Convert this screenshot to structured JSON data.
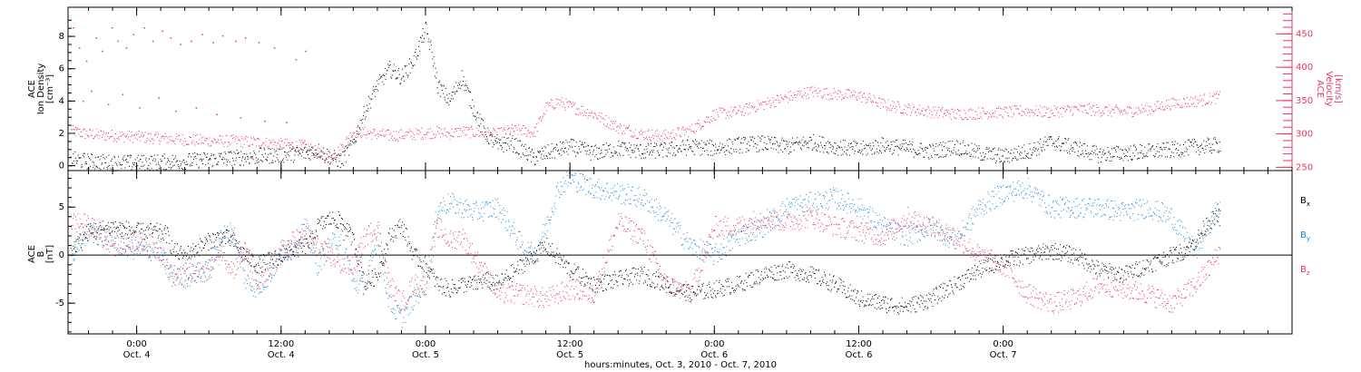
{
  "chart_data": [
    {
      "type": "scatter",
      "panel": "ion-density-velocity",
      "ylabel": [
        "ACE",
        "Ion Density",
        "[cm⁻³]"
      ],
      "y2label": [
        "ACE",
        "Velocity",
        "[km/s]"
      ],
      "ylim": [
        -0.3,
        9.8
      ],
      "yticks": [
        0,
        2,
        4,
        6,
        8
      ],
      "y2lim": [
        245,
        490
      ],
      "y2ticks": [
        250,
        300,
        350,
        400,
        450
      ],
      "colors": {
        "density": "#000000",
        "velocity": "#e8355f"
      },
      "series": [
        {
          "key": "density",
          "x": [
            -5.5,
            -4,
            -2,
            0,
            2,
            4,
            6,
            8,
            10,
            12,
            14,
            15,
            16,
            17,
            18,
            19,
            20,
            21,
            22,
            23,
            23.5,
            24,
            24.5,
            25,
            26,
            27,
            28,
            29,
            30,
            31,
            32,
            33,
            34,
            35,
            36,
            38,
            40,
            42,
            44,
            46,
            48,
            50,
            52,
            54,
            56,
            58,
            60,
            62,
            64,
            66,
            68,
            70,
            72,
            74,
            76,
            78,
            80,
            82,
            84,
            86,
            88,
            90
          ],
          "values": [
            0.4,
            0.3,
            0.2,
            0.2,
            0.25,
            0.3,
            0.4,
            0.5,
            0.6,
            0.7,
            0.8,
            1.0,
            0.6,
            0.3,
            1.5,
            3.5,
            5,
            6,
            5.5,
            6.5,
            7.5,
            8.5,
            7,
            5,
            4,
            5.5,
            3.5,
            2,
            1.2,
            1.5,
            1.0,
            0.5,
            0.8,
            1.0,
            1.2,
            0.8,
            1.1,
            0.9,
            1.0,
            1.2,
            1.1,
            1.3,
            1.4,
            1.2,
            1.5,
            1.2,
            1.0,
            1.3,
            1.1,
            0.9,
            1.2,
            0.8,
            0.6,
            0.9,
            1.5,
            1.1,
            0.7,
            0.8,
            0.9,
            1.0,
            1.2,
            1.3
          ]
        },
        {
          "key": "velocity",
          "x": [
            -5.5,
            -4,
            -2,
            0,
            2,
            4,
            6,
            8,
            10,
            12,
            14,
            15,
            16,
            17,
            18,
            19,
            20,
            21,
            22,
            23,
            24,
            25,
            26,
            27,
            28,
            29,
            30,
            31,
            32,
            33,
            34,
            35,
            36,
            37,
            38,
            40,
            42,
            44,
            46,
            48,
            50,
            52,
            54,
            56,
            58,
            60,
            62,
            64,
            66,
            68,
            70,
            72,
            74,
            76,
            78,
            80,
            82,
            84,
            86,
            88,
            90
          ],
          "values": [
            305,
            300,
            298,
            296,
            294,
            292,
            290,
            290,
            288,
            285,
            282,
            272,
            262,
            280,
            304,
            302,
            300,
            298,
            299,
            300,
            302,
            303,
            301,
            304,
            303,
            300,
            300,
            306,
            306,
            302,
            340,
            349,
            342,
            336,
            330,
            310,
            300,
            298,
            306,
            330,
            334,
            345,
            355,
            364,
            360,
            358,
            345,
            338,
            334,
            330,
            332,
            333,
            335,
            333,
            338,
            336,
            334,
            338,
            346,
            350,
            356
          ]
        }
      ],
      "sparse_velocity_scatter": {
        "x": [
          -5.3,
          -4.8,
          -4.2,
          -3.4,
          -2.9,
          -2.1,
          -1.6,
          -0.9,
          -0.3,
          0.6,
          1.3,
          2.1,
          2.8,
          3.6,
          4.5,
          5.4,
          6.3,
          7.1,
          8.2,
          9.0,
          10.1,
          11.4,
          13.2,
          14.0,
          -4.5,
          -3.8,
          -2.4,
          -1.2,
          0.2,
          1.8,
          3.2,
          4.9,
          6.6,
          8.6,
          10.6,
          12.4
        ],
        "values": [
          460,
          430,
          410,
          445,
          425,
          460,
          440,
          430,
          450,
          460,
          440,
          455,
          445,
          435,
          440,
          450,
          438,
          448,
          440,
          445,
          438,
          430,
          412,
          425,
          350,
          365,
          345,
          360,
          340,
          355,
          335,
          340,
          330,
          325,
          320,
          318
        ]
      }
    },
    {
      "type": "scatter",
      "panel": "magnetic-field",
      "ylabel": [
        "ACE",
        "B",
        "[nT]"
      ],
      "ylim": [
        -8.2,
        8.8
      ],
      "yticks": [
        -5,
        0,
        5
      ],
      "zero_line": true,
      "colors": {
        "Bx": "#000000",
        "By": "#1a86e0",
        "Bz": "#e8355f"
      },
      "series": [
        {
          "key": "Bx",
          "name": "B",
          "x": [
            -5.5,
            -4,
            -2,
            0,
            1.5,
            2.5,
            3,
            4,
            6,
            7,
            8,
            9,
            10,
            11,
            12,
            13,
            14,
            14.5,
            15,
            16,
            17,
            18,
            19,
            20,
            21,
            22,
            23,
            24,
            25,
            26,
            27,
            28,
            29,
            30,
            32,
            34,
            36,
            38,
            40,
            42,
            44,
            46,
            48,
            50,
            52,
            54,
            56,
            58,
            60,
            62,
            64,
            66,
            68,
            70,
            72,
            74,
            76,
            78,
            80,
            82,
            84,
            86,
            87,
            88,
            89,
            90
          ],
          "values": [
            0.5,
            2.5,
            3,
            2.5,
            2.5,
            2.2,
            0.5,
            0,
            1.5,
            2,
            1.5,
            0,
            -1,
            -0.5,
            0,
            0.5,
            1,
            1.5,
            3,
            3.8,
            3.6,
            1.5,
            -3,
            -2,
            2,
            3.2,
            0,
            -1,
            -3,
            -3.5,
            -3,
            -3,
            -2.5,
            -3,
            -1,
            1,
            -1.5,
            -3,
            -2.5,
            -2,
            -3,
            -4,
            -3.5,
            -3,
            -2,
            -1.5,
            -2,
            -3,
            -4.5,
            -5,
            -5.3,
            -4.5,
            -3,
            -1.5,
            -0.5,
            0,
            0.5,
            0,
            -1.5,
            -2,
            -1,
            0,
            0.5,
            1.5,
            3.5,
            4
          ]
        },
        {
          "key": "By",
          "name": "B",
          "x": [
            -5.5,
            -4,
            -2,
            0,
            2,
            2.5,
            3,
            4,
            6,
            7,
            8,
            9,
            10,
            11,
            12,
            13,
            14,
            15,
            16,
            17,
            18,
            19,
            20,
            21,
            22,
            23,
            24,
            25,
            26,
            28,
            30,
            32,
            33,
            34,
            35,
            36,
            38,
            40,
            42,
            44,
            46,
            48,
            50,
            52,
            54,
            56,
            58,
            60,
            62,
            64,
            66,
            68,
            70,
            72,
            74,
            76,
            78,
            80,
            82,
            84,
            86,
            87,
            88,
            89,
            90
          ],
          "values": [
            -0.5,
            2.5,
            1.5,
            0.5,
            0.5,
            -1.5,
            -2,
            -2.3,
            -1.5,
            2,
            2.5,
            -2.5,
            -3.5,
            -2,
            0,
            1,
            3,
            -1,
            1,
            2,
            -3,
            -3,
            2,
            -5,
            -6.5,
            -4.5,
            -3,
            5,
            5.5,
            4.5,
            5,
            1,
            0,
            3,
            7,
            8,
            7,
            6.5,
            6,
            4,
            1,
            0,
            2,
            3,
            5,
            5.5,
            6,
            5,
            3,
            2,
            3,
            1.5,
            5,
            6.5,
            7,
            5,
            5,
            5,
            4.5,
            5,
            4,
            2,
            0.5,
            3,
            5.3
          ]
        },
        {
          "key": "Bz",
          "name": "B",
          "x": [
            -5.5,
            -4,
            -3,
            -2,
            0,
            2,
            2.5,
            3,
            4,
            6,
            7,
            8,
            9,
            10,
            11,
            12,
            13,
            14,
            15,
            16,
            17,
            18,
            19,
            20,
            21,
            22,
            23,
            24,
            25,
            26,
            27,
            28,
            29,
            30,
            32,
            34,
            36,
            38,
            40,
            42,
            44,
            46,
            48,
            50,
            52,
            54,
            56,
            58,
            60,
            62,
            64,
            66,
            68,
            70,
            72,
            74,
            76,
            78,
            80,
            82,
            84,
            86,
            87,
            88,
            89,
            90
          ],
          "values": [
            3.5,
            3.2,
            2,
            1,
            1.5,
            0.5,
            -1,
            -2.5,
            -2,
            -1.5,
            0.5,
            -1.5,
            0.5,
            -3,
            -2,
            0.5,
            1.5,
            2,
            1,
            0,
            -1,
            -1,
            2,
            3,
            -3,
            -5,
            -3,
            -3,
            3,
            1.5,
            2,
            0,
            -2,
            -4,
            -4,
            -4.5,
            -3.5,
            -4,
            3.5,
            2,
            -3,
            -4,
            3,
            3,
            4,
            3.5,
            4,
            3,
            2.5,
            2,
            4,
            3,
            2,
            0,
            -1,
            -4,
            -5,
            -4.5,
            -3,
            -3.5,
            -4,
            -5,
            -4,
            -3,
            -1.5,
            0.5
          ]
        }
      ],
      "legend": [
        {
          "base": "B",
          "sub": "x",
          "color": "#000000"
        },
        {
          "base": "B",
          "sub": "y",
          "color": "#1a86e0"
        },
        {
          "base": "B",
          "sub": "z",
          "color": "#e8355f"
        }
      ]
    }
  ],
  "x_axis": {
    "xlim": [
      -5.7,
      96
    ],
    "ticks": [
      {
        "hours": 0,
        "time": "0:00",
        "date": "Oct. 4"
      },
      {
        "hours": 12,
        "time": "12:00",
        "date": "Oct. 4"
      },
      {
        "hours": 24,
        "time": "0:00",
        "date": "Oct. 5"
      },
      {
        "hours": 36,
        "time": "12:00",
        "date": "Oct. 5"
      },
      {
        "hours": 48,
        "time": "0:00",
        "date": "Oct. 6"
      },
      {
        "hours": 60,
        "time": "12:00",
        "date": "Oct. 6"
      },
      {
        "hours": 72,
        "time": "0:00",
        "date": "Oct. 7"
      }
    ],
    "label": "hours:minutes, Oct.  3, 2010 - Oct.  7, 2010"
  }
}
